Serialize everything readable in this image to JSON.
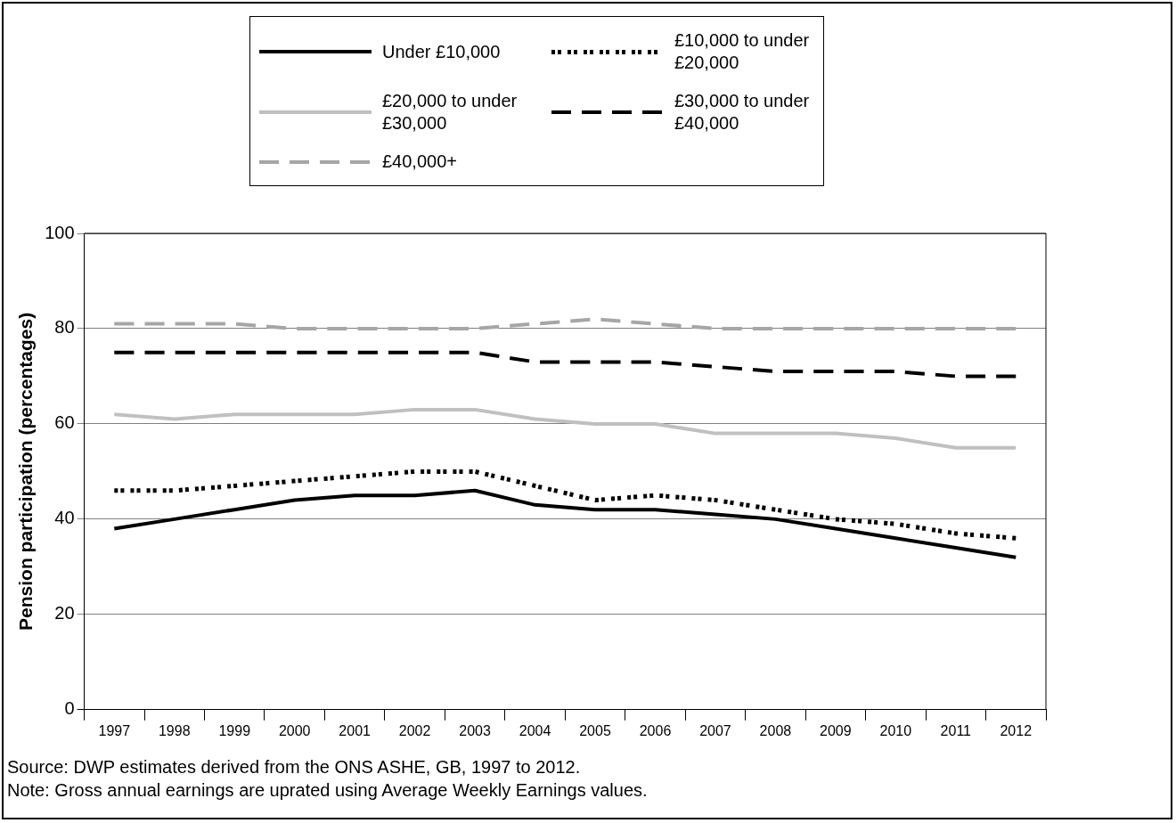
{
  "chart_data": {
    "type": "line",
    "ylabel": "Pension participation (percentages)",
    "categories": [
      "1997",
      "1998",
      "1999",
      "2000",
      "2001",
      "2002",
      "2003",
      "2004",
      "2005",
      "2006",
      "2007",
      "2008",
      "2009",
      "2010",
      "2011",
      "2012"
    ],
    "series": [
      {
        "name": "Under £10,000",
        "color": "#000000",
        "line_style": "solid",
        "values": [
          38,
          40,
          42,
          44,
          45,
          45,
          46,
          43,
          42,
          42,
          41,
          40,
          38,
          36,
          34,
          32
        ]
      },
      {
        "name": "£10,000 to under £20,000",
        "color": "#000000",
        "line_style": "dotted",
        "values": [
          46,
          46,
          47,
          48,
          49,
          50,
          50,
          47,
          44,
          45,
          44,
          42,
          40,
          39,
          37,
          36
        ]
      },
      {
        "name": "£20,000 to under £30,000",
        "color": "#c0c0c0",
        "line_style": "solid",
        "values": [
          62,
          61,
          62,
          62,
          62,
          63,
          63,
          61,
          60,
          60,
          58,
          58,
          58,
          57,
          55,
          55
        ]
      },
      {
        "name": "£30,000 to under £40,000",
        "color": "#000000",
        "line_style": "dashed",
        "values": [
          75,
          75,
          75,
          75,
          75,
          75,
          75,
          73,
          73,
          73,
          72,
          71,
          71,
          71,
          70,
          70
        ]
      },
      {
        "name": "£40,000+",
        "color": "#a6a6a6",
        "line_style": "dashed",
        "values": [
          81,
          81,
          81,
          80,
          80,
          80,
          80,
          81,
          82,
          81,
          80,
          80,
          80,
          80,
          80,
          80
        ]
      }
    ],
    "ylim": [
      0,
      100
    ],
    "yticks": [
      0,
      20,
      40,
      60,
      80,
      100
    ],
    "grid": "y",
    "legend": "top",
    "marker": "none",
    "annotations": [
      "Source: DWP estimates derived from the ONS ASHE, GB, 1997 to 2012.",
      "Note: Gross annual earnings are uprated using Average Weekly Earnings values."
    ]
  }
}
